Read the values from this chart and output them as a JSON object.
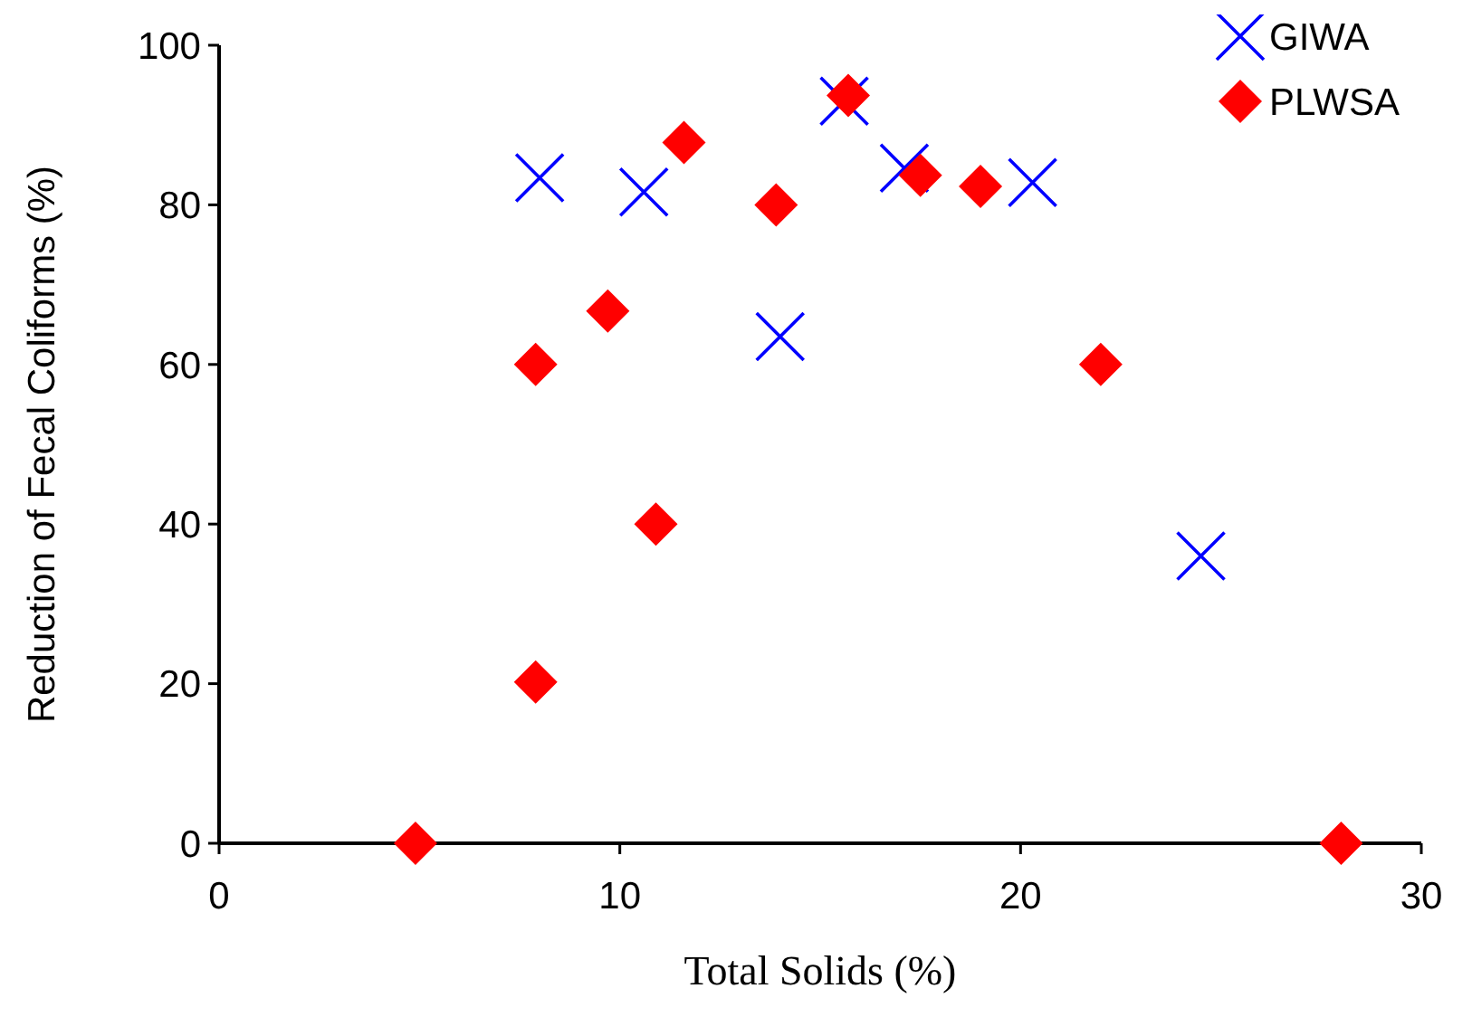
{
  "chart_data": {
    "type": "scatter",
    "xlabel": "Total Solids (%)",
    "ylabel": "Reduction of Fecal Coliforms (%)",
    "xlim": [
      0,
      30
    ],
    "xticks": [
      0,
      10,
      20,
      30
    ],
    "ylim": [
      0,
      100
    ],
    "yticks": [
      0,
      20,
      40,
      60,
      80,
      100
    ],
    "grid": false,
    "legend": "top right",
    "series": [
      {
        "name": "GIWA",
        "color": "#0000ff",
        "marker": "cross",
        "x": [
          8.0,
          10.6,
          14.0,
          15.6,
          17.1,
          20.3,
          24.5
        ],
        "values": [
          83.4,
          81.6,
          63.5,
          93,
          84.6,
          82.8,
          36
        ]
      },
      {
        "name": "PLWSA",
        "color": "#ff0000",
        "marker": "diamond",
        "x": [
          4.9,
          7.9,
          7.9,
          9.7,
          10.9,
          11.6,
          13.9,
          15.7,
          17.5,
          19.0,
          22.0,
          28.0
        ],
        "values": [
          0,
          20.2,
          60,
          66.7,
          40,
          87.8,
          80,
          93.7,
          83.7,
          82.3,
          60,
          0
        ]
      }
    ]
  }
}
